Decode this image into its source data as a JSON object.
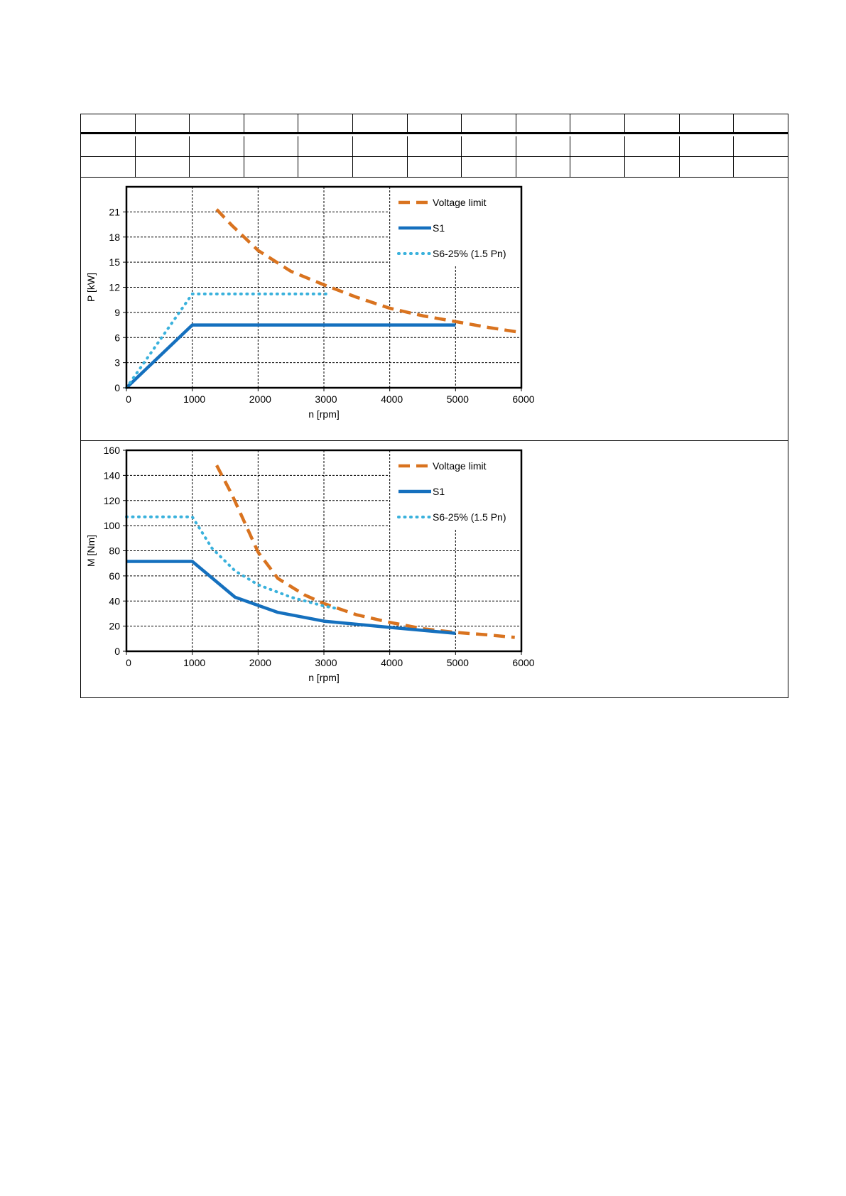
{
  "chart_data": [
    {
      "type": "line",
      "ylabel": "P [kW]",
      "xlabel": "n [rpm]",
      "xlim": [
        0,
        6000
      ],
      "ylim": [
        0,
        24
      ],
      "xticks": [
        0,
        1000,
        2000,
        3000,
        4000,
        5000,
        6000
      ],
      "yticks": [
        0,
        3,
        6,
        9,
        12,
        15,
        18,
        21
      ],
      "grid": true,
      "legend": "top-right",
      "series": [
        {
          "name": "Voltage limit",
          "style": "dashed",
          "color": "#d9731f",
          "x": [
            1370,
            1600,
            2000,
            2500,
            3000,
            3500,
            4000,
            4500,
            5000,
            5500,
            6000
          ],
          "y": [
            21.3,
            19.4,
            16.4,
            13.9,
            12.3,
            10.8,
            9.5,
            8.6,
            7.9,
            7.2,
            6.6
          ]
        },
        {
          "name": "S1",
          "style": "solid",
          "color": "#1570be",
          "x": [
            0,
            1000,
            5000
          ],
          "y": [
            0,
            7.5,
            7.5
          ]
        },
        {
          "name": "S6-25% (1.5 Pn)",
          "style": "dotted",
          "color": "#39b1dc",
          "x": [
            0,
            1000,
            3100
          ],
          "y": [
            0,
            11.2,
            11.2
          ]
        }
      ]
    },
    {
      "type": "line",
      "ylabel": "M [Nm]",
      "xlabel": "n [rpm]",
      "xlim": [
        0,
        6000
      ],
      "ylim": [
        0,
        160
      ],
      "xticks": [
        0,
        1000,
        2000,
        3000,
        4000,
        5000,
        6000
      ],
      "yticks": [
        0,
        20,
        40,
        60,
        80,
        100,
        120,
        140,
        160
      ],
      "grid": true,
      "legend": "top-right",
      "series": [
        {
          "name": "Voltage limit",
          "style": "dashed",
          "color": "#d9731f",
          "x": [
            1370,
            1600,
            2000,
            2300,
            2700,
            3000,
            3500,
            4000,
            4500,
            5000,
            5500,
            5900
          ],
          "y": [
            148,
            125,
            79,
            58,
            45,
            38,
            29,
            23,
            18,
            15,
            13,
            11
          ]
        },
        {
          "name": "S1",
          "style": "solid",
          "color": "#1570be",
          "x": [
            0,
            1000,
            1650,
            2300,
            3000,
            4000,
            5000
          ],
          "y": [
            71.5,
            71.5,
            43,
            31,
            24,
            19,
            14.3
          ]
        },
        {
          "name": "S6-25% (1.5 Pn)",
          "style": "dotted",
          "color": "#39b1dc",
          "x": [
            0,
            1000,
            1300,
            1650,
            2000,
            2500,
            3000,
            3200
          ],
          "y": [
            107,
            107,
            82,
            64,
            53,
            43,
            36,
            34
          ]
        }
      ]
    }
  ]
}
